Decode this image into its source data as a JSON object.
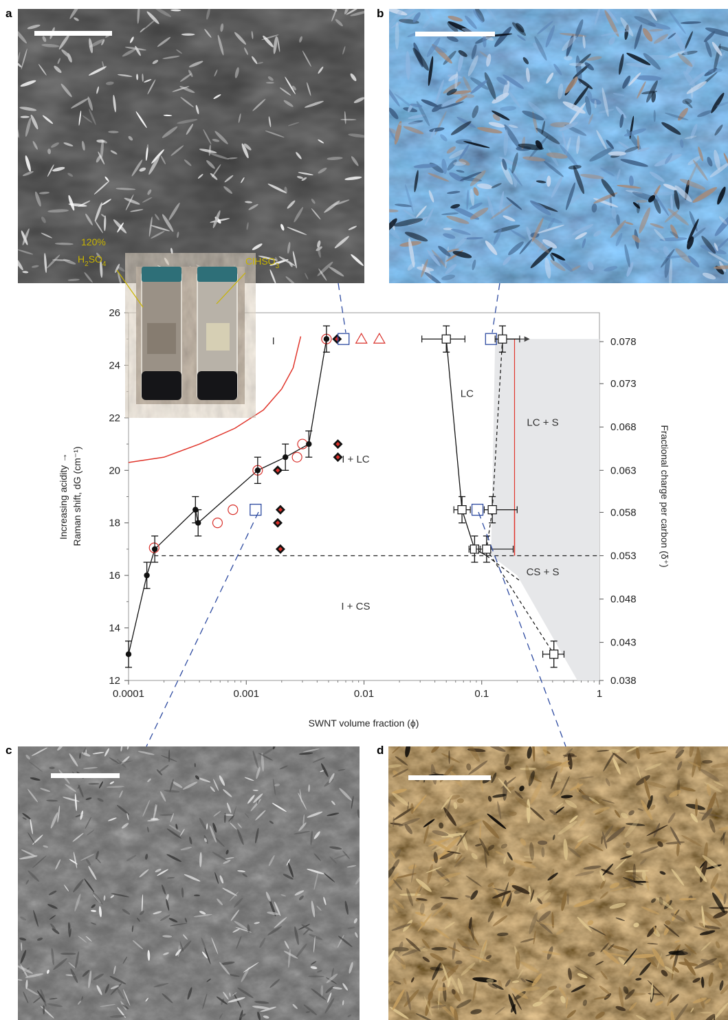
{
  "panels": {
    "a": {
      "letter": "a",
      "description_icon": "micrograph-grey-birefringent"
    },
    "b": {
      "letter": "b",
      "description_icon": "micrograph-blue-polarized"
    },
    "c": {
      "letter": "c",
      "description_icon": "micrograph-grey-textured"
    },
    "d": {
      "letter": "d",
      "description_icon": "micrograph-brown-polarized"
    }
  },
  "inset": {
    "label_left_line1": "120%",
    "label_left_line2": "H",
    "label_left_sub1": "2",
    "label_left_mid": "SO",
    "label_left_sub2": "4",
    "label_right_main": "ClHSO",
    "label_right_sub": "3"
  },
  "colors": {
    "red_curve": "#e0342a",
    "blue_marker": "#2d4aa0",
    "red_marker": "#d9302a",
    "black": "#111111",
    "grey_region": "#e6e7e9",
    "inset_label": "#c8b400"
  },
  "chart_data": {
    "type": "scatter",
    "x_scale": "log",
    "xlim": [
      0.0001,
      1
    ],
    "ylim": [
      12,
      26
    ],
    "y2lim": [
      0.038,
      0.08
    ],
    "xlabel": "SWNT volume fraction (ϕ)",
    "ylabel_line1": "Increasing acidity →",
    "ylabel_line2": "Raman shift, dG (cm⁻¹)",
    "y2label": "Fractional charge per carbon (δ⁺)",
    "x_ticks": [
      {
        "v": 0.0001,
        "label": "0.0001"
      },
      {
        "v": 0.001,
        "label": "0.001"
      },
      {
        "v": 0.01,
        "label": "0.01"
      },
      {
        "v": 0.1,
        "label": "0.1"
      },
      {
        "v": 1,
        "label": "1"
      }
    ],
    "y_ticks": [
      {
        "v": 12,
        "label": "12"
      },
      {
        "v": 14,
        "label": "14"
      },
      {
        "v": 16,
        "label": "16"
      },
      {
        "v": 18,
        "label": "18"
      },
      {
        "v": 20,
        "label": "20"
      },
      {
        "v": 22,
        "label": "22"
      },
      {
        "v": 24,
        "label": "24"
      },
      {
        "v": 26,
        "label": "26"
      }
    ],
    "y2_ticks": [
      {
        "label": "0.078",
        "y": 24.9
      },
      {
        "label": "0.073",
        "y": 23.3
      },
      {
        "label": "0.068",
        "y": 21.65
      },
      {
        "label": "0.063",
        "y": 20.0
      },
      {
        "label": "0.058",
        "y": 18.4
      },
      {
        "label": "0.053",
        "y": 16.75
      },
      {
        "label": "0.048",
        "y": 15.1
      },
      {
        "label": "0.043",
        "y": 13.45
      },
      {
        "label": "0.038",
        "y": 12.0
      }
    ],
    "regions": [
      {
        "label": "I",
        "x": 0.0017,
        "y": 24.8
      },
      {
        "label": "I + LC",
        "x": 0.0085,
        "y": 20.3
      },
      {
        "label": "I + CS",
        "x": 0.0085,
        "y": 14.7
      },
      {
        "label": "LC",
        "x": 0.075,
        "y": 22.8
      },
      {
        "label": "LC + S",
        "x": 0.33,
        "y": 21.7
      },
      {
        "label": "CS + S",
        "x": 0.33,
        "y": 16.0
      }
    ],
    "cloud_point": [
      {
        "x": 0.0001,
        "y": 13.0,
        "err": 0.5
      },
      {
        "x": 0.000143,
        "y": 16.0,
        "err": 0.5
      },
      {
        "x": 0.000167,
        "y": 17.0,
        "err": 0.5
      },
      {
        "x": 0.00037,
        "y": 18.5,
        "err": 0.5
      },
      {
        "x": 0.00039,
        "y": 18.0,
        "err": 0.5
      },
      {
        "x": 0.00125,
        "y": 20.0,
        "err": 0.5
      },
      {
        "x": 0.00215,
        "y": 20.5,
        "err": 0.5
      },
      {
        "x": 0.0034,
        "y": 21.0,
        "err": 0.5
      },
      {
        "x": 0.0048,
        "y": 25.0,
        "err": 0.5
      }
    ],
    "isotropic_open_circles": [
      {
        "x": 0.000165,
        "y": 17.05
      },
      {
        "x": 0.00057,
        "y": 18.0
      },
      {
        "x": 0.00077,
        "y": 18.5
      },
      {
        "x": 0.00125,
        "y": 20.0
      },
      {
        "x": 0.0027,
        "y": 20.5
      },
      {
        "x": 0.003,
        "y": 21.0
      },
      {
        "x": 0.0048,
        "y": 25.0
      }
    ],
    "biphasic_diamonds": [
      {
        "x": 0.0059,
        "y": 25.0
      },
      {
        "x": 0.006,
        "y": 21.0
      },
      {
        "x": 0.006,
        "y": 20.5
      },
      {
        "x": 0.00185,
        "y": 20.0
      },
      {
        "x": 0.00195,
        "y": 18.5
      },
      {
        "x": 0.00185,
        "y": 18.0
      },
      {
        "x": 0.00195,
        "y": 17.0
      }
    ],
    "triangles": [
      {
        "x": 0.0095,
        "y": 25.0
      },
      {
        "x": 0.0135,
        "y": 25.0
      }
    ],
    "blue_squares": [
      {
        "x": 0.0067,
        "y": 25.0
      },
      {
        "x": 0.0012,
        "y": 18.5
      },
      {
        "x": 0.12,
        "y": 25.0
      },
      {
        "x": 0.092,
        "y": 18.5
      }
    ],
    "clearing_point": [
      {
        "x": 0.05,
        "y": 25.0,
        "xerr": [
          0.031,
          0.072
        ],
        "yerr": 0.5
      },
      {
        "x": 0.068,
        "y": 18.5,
        "xerr": [
          0.058,
          0.08
        ],
        "yerr": 0.5
      },
      {
        "x": 0.087,
        "y": 17.0,
        "xerr": [
          0.078,
          0.097
        ],
        "yerr": 0.5
      }
    ],
    "solid_onset": [
      {
        "x": 0.15,
        "y": 25.0,
        "xerr": [
          0.13,
          0.21
        ],
        "yerr": 0.5
      },
      {
        "x": 0.123,
        "y": 18.5,
        "xerr": [
          0.105,
          0.2
        ],
        "yerr": 0.5
      },
      {
        "x": 0.11,
        "y": 17.0,
        "xerr": [
          0.09,
          0.185
        ],
        "yerr": 0.5
      },
      {
        "x": 0.41,
        "y": 13.0,
        "xerr": [
          0.33,
          0.5
        ],
        "yerr": 0.5
      }
    ],
    "red_boundary_curve": [
      {
        "x": 0.0001,
        "y": 20.3
      },
      {
        "x": 0.0002,
        "y": 20.5
      },
      {
        "x": 0.0004,
        "y": 21.0
      },
      {
        "x": 0.0008,
        "y": 21.6
      },
      {
        "x": 0.0014,
        "y": 22.3
      },
      {
        "x": 0.002,
        "y": 23.1
      },
      {
        "x": 0.0025,
        "y": 23.9
      },
      {
        "x": 0.0029,
        "y": 25.1
      }
    ],
    "dashed_horizontal_y": 16.75
  }
}
